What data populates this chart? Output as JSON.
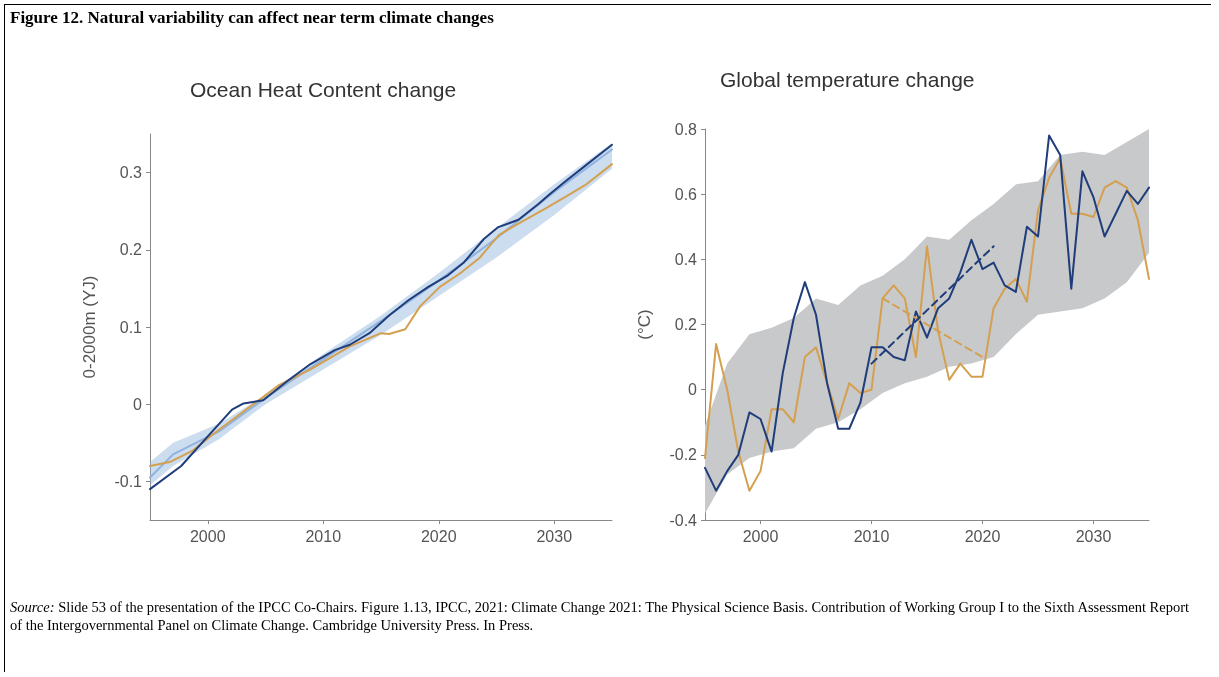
{
  "chart_data": [
    {
      "type": "line",
      "title": "Figure 12. Natural variability can affect near term climate changes",
      "subtitle": "Ocean Heat Content change",
      "ylabel": "0-2000m (YJ)",
      "xlim": [
        1995,
        2035
      ],
      "xticks": [
        2000,
        2010,
        2020,
        2030
      ],
      "ylim": [
        -0.15,
        0.35
      ],
      "yticks": [
        -0.1,
        0,
        0.1,
        0.2,
        0.3
      ],
      "series": [
        {
          "color": "#8fb3de",
          "x": [
            1995,
            1997,
            2001,
            2005,
            2010,
            2015,
            2020,
            2025,
            2030,
            2035
          ],
          "values": [
            -0.095,
            -0.065,
            -0.035,
            0.008,
            0.058,
            0.108,
            0.16,
            0.215,
            0.275,
            0.33
          ],
          "lower": [
            -0.105,
            -0.08,
            -0.045,
            0,
            0.045,
            0.09,
            0.14,
            0.19,
            0.245,
            0.305
          ],
          "upper": [
            -0.075,
            -0.05,
            -0.025,
            0.012,
            0.065,
            0.115,
            0.17,
            0.228,
            0.285,
            0.338
          ]
        },
        {
          "color": "#d4a050",
          "x": [
            1995,
            1996.7,
            1998.7,
            2000.8,
            2003.5,
            2006.2,
            2008.9,
            2012.3,
            2015,
            2015.7,
            2017.1,
            2018.4,
            2020.1,
            2021.8,
            2023.5,
            2025.2,
            2026.9,
            2029.3,
            2031,
            2032.7,
            2035
          ],
          "values": [
            -0.08,
            -0.075,
            -0.06,
            -0.035,
            -0.005,
            0.025,
            0.045,
            0.075,
            0.092,
            0.091,
            0.097,
            0.127,
            0.152,
            0.169,
            0.189,
            0.219,
            0.234,
            0.254,
            0.269,
            0.284,
            0.311
          ]
        },
        {
          "color": "#1f3d7a",
          "x": [
            1995,
            1997.7,
            2000.1,
            2002.1,
            2003.1,
            2004.8,
            2006.9,
            2008.9,
            2011,
            2012.3,
            2014,
            2015.7,
            2017.4,
            2019.1,
            2020.8,
            2022.2,
            2023.9,
            2025.1,
            2026.9,
            2028.6,
            2029.6,
            2031,
            2032.7,
            2035
          ],
          "values": [
            -0.11,
            -0.08,
            -0.04,
            -0.007,
            0.001,
            0.005,
            0.03,
            0.052,
            0.07,
            0.077,
            0.092,
            0.115,
            0.135,
            0.152,
            0.167,
            0.184,
            0.214,
            0.229,
            0.239,
            0.259,
            0.272,
            0.289,
            0.309,
            0.336
          ]
        }
      ]
    },
    {
      "type": "line",
      "title": "Global temperature change",
      "ylabel": "(°C)",
      "xlim": [
        1995,
        2035
      ],
      "xticks": [
        2000,
        2010,
        2020,
        2030
      ],
      "ylim": [
        -0.4,
        0.8
      ],
      "yticks": [
        -0.4,
        -0.2,
        0,
        0.2,
        0.4,
        0.6,
        0.8
      ],
      "annotations": [
        "Source: Slide 53 of the presentation of the IPCC Co-Chairs. Figure 1.13, IPCC, 2021: Climate Change 2021: The Physical Science Basis. Contribution of Working Group I to the Sixth Assessment Report of the Intergovernmental Panel on Climate Change. Cambridge University Press. In Press."
      ],
      "series": [
        {
          "color": "#c8c9cb",
          "x": [
            1995,
            1997,
            1999,
            2001,
            2003,
            2005,
            2007,
            2009,
            2011,
            2013,
            2015,
            2017,
            2019,
            2021,
            2023,
            2025,
            2027,
            2029,
            2031,
            2033,
            2035
          ],
          "values": [
            null,
            null,
            null,
            null,
            null,
            null,
            null,
            null,
            null,
            null,
            null,
            null,
            null,
            null,
            null,
            null,
            null,
            null,
            null,
            null,
            null
          ],
          "lower": [
            -0.38,
            -0.26,
            -0.21,
            -0.19,
            -0.18,
            -0.12,
            -0.1,
            -0.06,
            -0.01,
            0.02,
            0.04,
            0.07,
            0.08,
            0.1,
            0.17,
            0.23,
            0.24,
            0.25,
            0.28,
            0.33,
            0.42
          ],
          "upper": [
            -0.11,
            0.08,
            0.17,
            0.19,
            0.22,
            0.28,
            0.26,
            0.32,
            0.35,
            0.4,
            0.47,
            0.46,
            0.52,
            0.57,
            0.63,
            0.64,
            0.72,
            0.73,
            0.72,
            0.76,
            0.8
          ]
        },
        {
          "color": "#d4a050",
          "x": [
            1995,
            1996,
            1997,
            1998,
            1999,
            2000,
            2001,
            2002,
            2003,
            2004,
            2005,
            2006,
            2007,
            2008,
            2009,
            2010,
            2011,
            2012,
            2013,
            2014,
            2015,
            2016,
            2017,
            2018,
            2019,
            2020,
            2021,
            2022,
            2023,
            2024,
            2025,
            2026,
            2027,
            2028,
            2029,
            2030,
            2031,
            2032,
            2033,
            2034,
            2035
          ],
          "values": [
            -0.21,
            0.14,
            0.0,
            -0.19,
            -0.31,
            -0.25,
            -0.06,
            -0.06,
            -0.1,
            0.1,
            0.13,
            0.02,
            -0.09,
            0.02,
            -0.01,
            0.0,
            0.28,
            0.32,
            0.28,
            0.1,
            0.44,
            0.18,
            0.03,
            0.08,
            0.04,
            0.04,
            0.25,
            0.31,
            0.34,
            0.27,
            0.55,
            0.65,
            0.71,
            0.54,
            0.54,
            0.53,
            0.62,
            0.64,
            0.62,
            0.52,
            0.34
          ]
        },
        {
          "color": "#1f3d7a",
          "x": [
            1995,
            1996,
            1997,
            1998,
            1999,
            2000,
            2001,
            2002,
            2003,
            2004,
            2005,
            2006,
            2007,
            2008,
            2009,
            2010,
            2011,
            2012,
            2013,
            2014,
            2015,
            2016,
            2017,
            2018,
            2019,
            2020,
            2021,
            2022,
            2023,
            2024,
            2025,
            2026,
            2027,
            2028,
            2029,
            2030,
            2031,
            2032,
            2033,
            2034,
            2035
          ],
          "values": [
            -0.24,
            -0.31,
            -0.25,
            -0.2,
            -0.07,
            -0.09,
            -0.19,
            0.05,
            0.22,
            0.33,
            0.23,
            0.02,
            -0.12,
            -0.12,
            -0.04,
            0.13,
            0.13,
            0.1,
            0.09,
            0.24,
            0.16,
            0.25,
            0.28,
            0.36,
            0.46,
            0.37,
            0.39,
            0.32,
            0.3,
            0.5,
            0.47,
            0.78,
            0.72,
            0.31,
            0.67,
            0.59,
            0.47,
            0.54,
            0.61,
            0.57,
            0.62
          ]
        },
        {
          "color": "#d4a050",
          "line_style": "dashed",
          "x": [
            2011,
            2020
          ],
          "values": [
            0.28,
            0.1
          ]
        },
        {
          "color": "#1f3d7a",
          "line_style": "dashed",
          "x": [
            2010,
            2021
          ],
          "values": [
            0.08,
            0.44
          ]
        }
      ]
    }
  ]
}
